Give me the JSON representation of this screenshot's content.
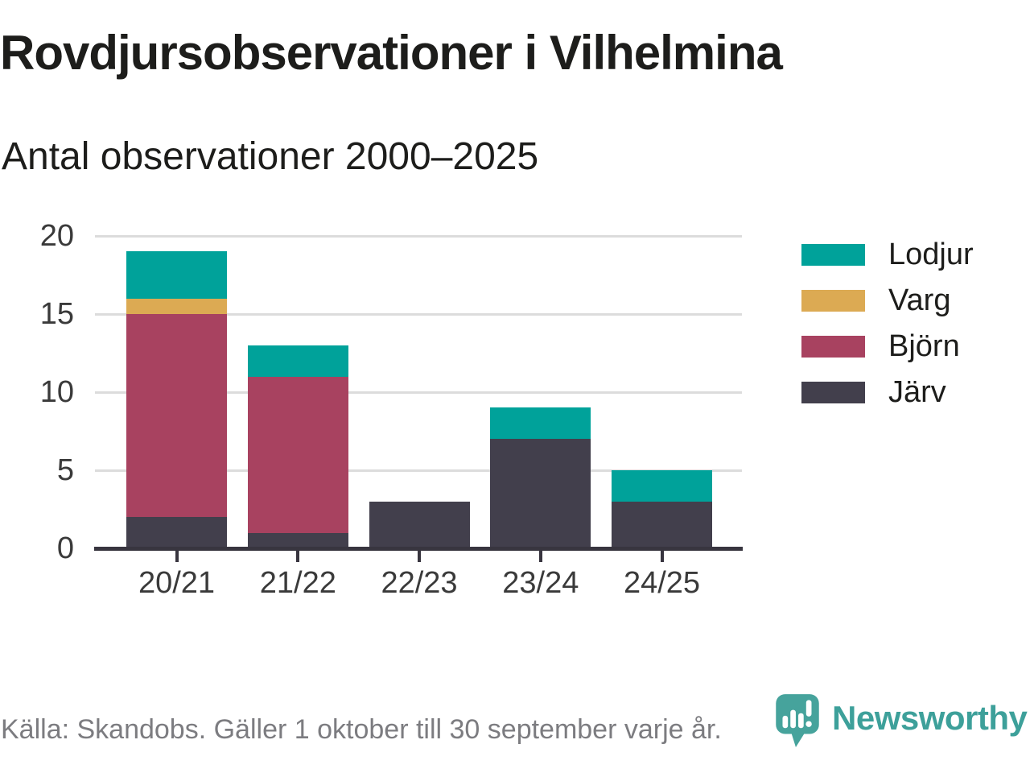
{
  "title": "Rovdjursobservationer i Vilhelmina",
  "subtitle": "Antal observationer 2000–2025",
  "footer": {
    "source": "Källa: Skandobs. Gäller 1 oktober till 30 september varje år."
  },
  "branding": {
    "name": "Newsworthy",
    "logo_icon": "newsworthy-speech-bubble-barchart-icon",
    "accent_color": "#3da09a"
  },
  "colors": {
    "lodjur_teal": "#00a29a",
    "varg_gold": "#dcaa53",
    "bjorn_maroon": "#a84260",
    "jarv_slate": "#423f4c",
    "gridline": "#dcdcdc",
    "axis": "#38353f",
    "tick_label": "#3a3a3a",
    "text_dark": "#1d1d1b",
    "source_gray": "#7c7c80"
  },
  "chart_data": {
    "type": "bar",
    "stacked": true,
    "title": "Rovdjursobservationer i Vilhelmina",
    "subtitle": "Antal observationer 2000–2025",
    "xlabel": "",
    "ylabel": "",
    "categories": [
      "20/21",
      "21/22",
      "22/23",
      "23/24",
      "24/25"
    ],
    "series": [
      {
        "name": "Järv",
        "color": "#423f4c",
        "values": [
          2,
          1,
          3,
          7,
          3
        ]
      },
      {
        "name": "Björn",
        "color": "#a84260",
        "values": [
          13,
          10,
          0,
          0,
          0
        ]
      },
      {
        "name": "Varg",
        "color": "#dcaa53",
        "values": [
          1,
          0,
          0,
          0,
          0
        ]
      },
      {
        "name": "Lodjur",
        "color": "#00a29a",
        "values": [
          3,
          2,
          0,
          2,
          2
        ]
      }
    ],
    "totals": [
      19,
      13,
      3,
      9,
      5
    ],
    "ylim": [
      0,
      20
    ],
    "yticks": [
      0,
      5,
      10,
      15,
      20
    ],
    "grid": "horizontal",
    "legend_position": "right",
    "legend_order": [
      "Lodjur",
      "Varg",
      "Björn",
      "Järv"
    ]
  }
}
